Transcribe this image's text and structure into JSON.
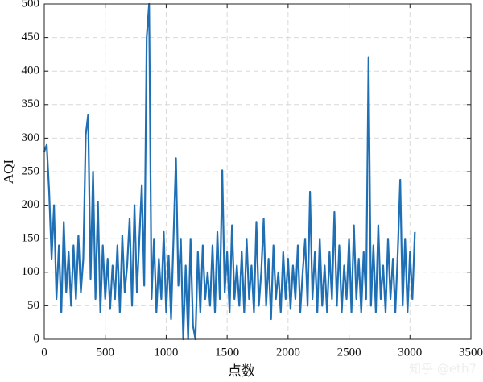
{
  "chart_data": {
    "type": "line",
    "x_label": "点数",
    "y_label": "AQI",
    "watermark": "知乎 @eth7",
    "color": "#1f6fb5",
    "grid": true,
    "xlim": [
      0,
      3500
    ],
    "xticks": [
      0,
      500,
      1000,
      1500,
      2000,
      2500,
      3000,
      3500
    ],
    "ylim": [
      0,
      500
    ],
    "yticks": [
      0,
      50,
      100,
      150,
      200,
      250,
      300,
      350,
      400,
      450,
      500
    ],
    "x": [
      0,
      20,
      40,
      60,
      80,
      100,
      120,
      140,
      160,
      180,
      200,
      220,
      240,
      260,
      280,
      300,
      320,
      340,
      360,
      380,
      400,
      420,
      440,
      460,
      480,
      500,
      520,
      540,
      560,
      580,
      600,
      620,
      640,
      660,
      680,
      700,
      720,
      740,
      760,
      780,
      800,
      820,
      840,
      860,
      880,
      900,
      920,
      940,
      960,
      980,
      1000,
      1020,
      1040,
      1060,
      1080,
      1100,
      1120,
      1140,
      1160,
      1180,
      1200,
      1220,
      1240,
      1260,
      1280,
      1300,
      1320,
      1340,
      1360,
      1380,
      1400,
      1420,
      1440,
      1460,
      1480,
      1500,
      1520,
      1540,
      1560,
      1580,
      1600,
      1620,
      1640,
      1660,
      1680,
      1700,
      1720,
      1740,
      1760,
      1780,
      1800,
      1820,
      1840,
      1860,
      1880,
      1900,
      1920,
      1940,
      1960,
      1980,
      2000,
      2020,
      2040,
      2060,
      2080,
      2100,
      2120,
      2140,
      2160,
      2180,
      2200,
      2220,
      2240,
      2260,
      2280,
      2300,
      2320,
      2340,
      2360,
      2380,
      2400,
      2420,
      2440,
      2460,
      2480,
      2500,
      2520,
      2540,
      2560,
      2580,
      2600,
      2620,
      2640,
      2660,
      2680,
      2700,
      2720,
      2740,
      2760,
      2780,
      2800,
      2820,
      2840,
      2860,
      2880,
      2900,
      2920,
      2940,
      2960,
      2980,
      3000,
      3020,
      3040
    ],
    "values": [
      280,
      290,
      220,
      120,
      200,
      60,
      140,
      40,
      175,
      70,
      130,
      50,
      140,
      60,
      155,
      70,
      120,
      305,
      335,
      90,
      250,
      60,
      205,
      40,
      140,
      60,
      120,
      45,
      110,
      60,
      140,
      40,
      155,
      70,
      110,
      180,
      50,
      200,
      70,
      150,
      230,
      80,
      450,
      500,
      60,
      150,
      40,
      120,
      60,
      160,
      40,
      125,
      30,
      150,
      270,
      80,
      150,
      0,
      110,
      0,
      150,
      20,
      0,
      130,
      40,
      140,
      60,
      100,
      50,
      140,
      40,
      160,
      60,
      252,
      70,
      130,
      40,
      170,
      60,
      110,
      50,
      130,
      40,
      150,
      60,
      110,
      40,
      175,
      50,
      100,
      180,
      50,
      120,
      30,
      140,
      60,
      100,
      40,
      130,
      60,
      120,
      45,
      110,
      60,
      140,
      40,
      100,
      150,
      50,
      220,
      60,
      130,
      40,
      150,
      50,
      110,
      40,
      130,
      60,
      190,
      50,
      140,
      40,
      110,
      60,
      150,
      40,
      170,
      60,
      120,
      40,
      130,
      60,
      420,
      50,
      140,
      40,
      170,
      60,
      110,
      40,
      150,
      60,
      120,
      40,
      130,
      238,
      50,
      150,
      40,
      130,
      60,
      160
    ]
  }
}
